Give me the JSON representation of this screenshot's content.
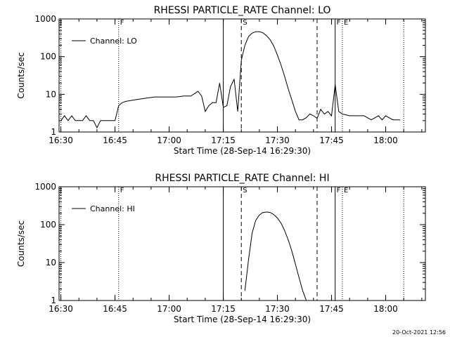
{
  "footer": {
    "date": "20-Oct-2021 12:56"
  },
  "colors": {
    "background": "#ffffff",
    "foreground": "#000000"
  },
  "chart_data": [
    {
      "type": "line",
      "title": "RHESSI PARTICLE_RATE Channel: LO",
      "xlabel": "Start Time (28-Sep-14 16:29:30)",
      "ylabel": "Counts/sec",
      "y_scale": "log",
      "xlim": [
        "16:30",
        "18:11"
      ],
      "ylim": [
        1,
        1000
      ],
      "x_ticks": [
        "16:30",
        "16:45",
        "17:00",
        "17:15",
        "17:30",
        "17:45",
        "18:00"
      ],
      "y_ticks": [
        "1",
        "10",
        "100",
        "1000"
      ],
      "legend": {
        "position": "top-left",
        "entries": [
          "Channel: LO"
        ]
      },
      "markers": [
        {
          "time": "16:30",
          "label": "",
          "style": "dotted"
        },
        {
          "time": "16:46",
          "label": "F",
          "style": "dotted"
        },
        {
          "time": "17:15",
          "label": "",
          "style": "solid"
        },
        {
          "time": "17:20",
          "label": "S",
          "style": "dashed"
        },
        {
          "time": "17:41",
          "label": "",
          "style": "dashed"
        },
        {
          "time": "17:46",
          "label": "F",
          "style": "solid"
        },
        {
          "time": "17:48",
          "label": "E",
          "style": "dotted"
        },
        {
          "time": "18:05",
          "label": "",
          "style": "dotted"
        }
      ],
      "series": [
        {
          "name": "Channel: LO",
          "x": [
            "16:30",
            "16:31",
            "16:32",
            "16:33",
            "16:34",
            "16:35",
            "16:36",
            "16:37",
            "16:38",
            "16:39",
            "16:40",
            "16:41",
            "16:42",
            "16:43",
            "16:44",
            "16:45",
            "16:46",
            "16:47",
            "16:48",
            "16:50",
            "16:52",
            "16:54",
            "16:56",
            "16:58",
            "17:00",
            "17:02",
            "17:04",
            "17:06",
            "17:08",
            "17:09",
            "17:10",
            "17:11",
            "17:12",
            "17:13",
            "17:14",
            "17:15",
            "17:16",
            "17:17",
            "17:18",
            "17:19",
            "17:20",
            "17:21",
            "17:22",
            "17:23",
            "17:24",
            "17:25",
            "17:26",
            "17:27",
            "17:28",
            "17:29",
            "17:30",
            "17:31",
            "17:32",
            "17:33",
            "17:34",
            "17:35",
            "17:36",
            "17:37",
            "17:38",
            "17:39",
            "17:40",
            "17:41",
            "17:42",
            "17:43",
            "17:44",
            "17:45",
            "17:46",
            "17:47",
            "17:48",
            "17:50",
            "17:52",
            "17:54",
            "17:56",
            "17:58",
            "17:59",
            "18:00",
            "18:02",
            "18:04"
          ],
          "y": [
            2,
            2.7,
            2,
            2.7,
            2,
            2,
            2,
            2.7,
            2,
            2,
            1.3,
            2,
            2,
            2,
            2,
            2,
            5,
            6,
            6.5,
            7,
            7.5,
            8,
            8.5,
            8.5,
            8.5,
            8.5,
            9,
            9,
            12,
            9,
            3.5,
            5,
            6,
            6,
            20,
            4.5,
            5,
            16,
            25,
            3.5,
            80,
            200,
            340,
            420,
            460,
            460,
            430,
            360,
            280,
            190,
            110,
            60,
            30,
            14,
            7,
            3.5,
            2.1,
            2.1,
            2.4,
            3,
            2.7,
            2.3,
            4,
            3,
            3.5,
            2.7,
            18,
            3.5,
            3,
            2.7,
            2.7,
            2.7,
            2.1,
            2.7,
            2.1,
            2.7,
            2.1,
            2.1
          ]
        }
      ]
    },
    {
      "type": "line",
      "title": "RHESSI PARTICLE_RATE Channel: HI",
      "xlabel": "Start Time (28-Sep-14 16:29:30)",
      "ylabel": "Counts/sec",
      "y_scale": "log",
      "xlim": [
        "16:30",
        "18:11"
      ],
      "ylim": [
        1,
        1000
      ],
      "x_ticks": [
        "16:30",
        "16:45",
        "17:00",
        "17:15",
        "17:30",
        "17:45",
        "18:00"
      ],
      "y_ticks": [
        "1",
        "10",
        "100",
        "1000"
      ],
      "legend": {
        "position": "top-left",
        "entries": [
          "Channel: HI"
        ]
      },
      "markers": [
        {
          "time": "16:30",
          "label": "",
          "style": "dotted"
        },
        {
          "time": "16:46",
          "label": "F",
          "style": "dotted"
        },
        {
          "time": "17:15",
          "label": "",
          "style": "solid"
        },
        {
          "time": "17:20",
          "label": "S",
          "style": "dashed"
        },
        {
          "time": "17:41",
          "label": "",
          "style": "dashed"
        },
        {
          "time": "17:46",
          "label": "F",
          "style": "solid"
        },
        {
          "time": "17:48",
          "label": "E",
          "style": "dotted"
        },
        {
          "time": "18:05",
          "label": "",
          "style": "dotted"
        }
      ],
      "series": [
        {
          "name": "Channel: HI",
          "x": [
            "17:21",
            "17:22",
            "17:23",
            "17:24",
            "17:25",
            "17:26",
            "17:27",
            "17:28",
            "17:29",
            "17:30",
            "17:31",
            "17:32",
            "17:33",
            "17:34",
            "17:35",
            "17:36",
            "17:37",
            "17:38"
          ],
          "y": [
            1.8,
            12,
            60,
            130,
            180,
            210,
            215,
            210,
            185,
            150,
            110,
            70,
            40,
            20,
            9,
            4,
            1.8,
            1
          ]
        }
      ]
    }
  ]
}
